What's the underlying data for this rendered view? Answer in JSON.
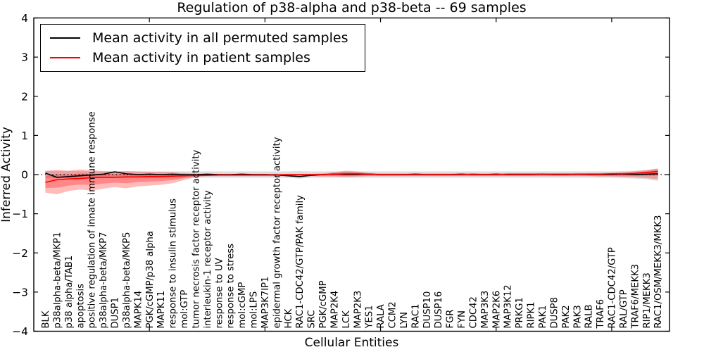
{
  "title": "Regulation of p38-alpha and p38-beta -- 69 samples",
  "axes": {
    "x_label": "Cellular Entities",
    "y_label": "Inferred Activity"
  },
  "legend": {
    "items": [
      {
        "label": "Mean activity in all permuted samples",
        "color": "#000000"
      },
      {
        "label": "Mean activity in patient samples",
        "color": "#ff0000"
      }
    ]
  },
  "colors": {
    "permuted_line": "#000000",
    "patient_line": "#ff0000",
    "patient_band": "#ff0000",
    "permuted_band": "#999999",
    "zero_line": "#000000",
    "spine": "#000000"
  },
  "chart_data": {
    "type": "line",
    "title": "Regulation of p38-alpha and p38-beta -- 69 samples",
    "xlabel": "Cellular Entities",
    "ylabel": "Inferred Activity",
    "ylim": [
      -4,
      4
    ],
    "xlim": [
      0,
      55
    ],
    "yticks": [
      -4,
      -3,
      -2,
      -1,
      0,
      1,
      2,
      3,
      4
    ],
    "xticks_major": [
      10,
      20,
      30,
      40,
      50
    ],
    "zero_line_style": "dotted",
    "legend_position": "upper left",
    "grid": false,
    "categories": [
      "BLK",
      "p38alpha-beta/MKP1",
      "p38 alpha/TAB1",
      "apoptosis",
      "positive regulation of innate immune response",
      "p38alpha-beta/MKP7",
      "DUSP1",
      "p38alpha-beta/MKP5",
      "MAPK14",
      "PGK/cGMP/p38 alpha",
      "MAPK11",
      "response to insulin stimulus",
      "mol:GTP",
      "tumor necrosis factor receptor activity",
      "interleukin-1 receptor activity",
      "response to UV",
      "response to stress",
      "mol:cGMP",
      "mol:LPS",
      "MAP3K7IP1",
      "epidermal growth factor receptor activity",
      "HCK",
      "RAC1-CDC42/GTP/PAK family",
      "SRC",
      "PGK/cGMP",
      "MAP2K4",
      "LCK",
      "MAP2K3",
      "YES1",
      "RALA",
      "CCM2",
      "LYN",
      "RAC1",
      "DUSP10",
      "DUSP16",
      "FGR",
      "FYN",
      "CDC42",
      "MAP3K3",
      "MAP2K6",
      "MAP3K12",
      "PRKG1",
      "RIPK1",
      "PAK1",
      "DUSP8",
      "PAK2",
      "PAK3",
      "RALB",
      "TRAF6",
      "RAC1-CDC42/GTP",
      "RAL/GTP",
      "TRAF6/MEKK3",
      "RIP1/MEKK3",
      "RAC1/OSM/MEKK3/MKK3"
    ],
    "series": [
      {
        "name": "Mean activity in all permuted samples",
        "color": "#000000",
        "values": [
          0.04,
          -0.07,
          -0.05,
          -0.03,
          -0.01,
          0.01,
          0.07,
          0.02,
          0.0,
          0.01,
          0.0,
          0.01,
          0.0,
          0.0,
          0.01,
          0.0,
          0.0,
          0.01,
          0.0,
          0.0,
          -0.01,
          -0.03,
          -0.05,
          -0.02,
          0.0,
          0.01,
          0.0,
          0.0,
          0.01,
          0.0,
          0.0,
          0.0,
          0.01,
          0.0,
          0.0,
          0.0,
          0.01,
          0.0,
          0.0,
          0.01,
          0.0,
          0.0,
          0.0,
          0.01,
          0.0,
          0.0,
          0.01,
          0.0,
          0.0,
          0.0,
          0.01,
          0.0,
          0.01,
          0.02
        ]
      },
      {
        "name": "Mean activity in patient samples",
        "color": "#ff0000",
        "values": [
          -0.2,
          -0.13,
          -0.11,
          -0.1,
          -0.08,
          -0.07,
          -0.07,
          -0.06,
          -0.06,
          -0.05,
          -0.05,
          -0.04,
          -0.03,
          -0.02,
          -0.02,
          -0.01,
          -0.01,
          -0.01,
          -0.01,
          -0.01,
          -0.01,
          0.0,
          0.0,
          0.0,
          0.0,
          0.01,
          0.02,
          0.02,
          0.01,
          0.0,
          0.0,
          0.0,
          0.0,
          0.0,
          0.0,
          0.0,
          0.0,
          0.01,
          0.0,
          0.0,
          0.01,
          0.01,
          0.01,
          0.01,
          0.01,
          0.01,
          0.01,
          0.01,
          0.01,
          0.02,
          0.02,
          0.03,
          0.05,
          0.08
        ]
      }
    ],
    "bands": [
      {
        "name": "permuted-sample-range",
        "color": "#999999",
        "opacity": 0.32,
        "hi": [
          0.09,
          0.09,
          0.09,
          0.09,
          0.08,
          0.08,
          0.08,
          0.08,
          0.08,
          0.08,
          0.08,
          0.08,
          0.08,
          0.08,
          0.08,
          0.08,
          0.08,
          0.08,
          0.08,
          0.08,
          0.08,
          0.08,
          0.09,
          0.08,
          0.08,
          0.08,
          0.08,
          0.08,
          0.08,
          0.08,
          0.08,
          0.08,
          0.08,
          0.08,
          0.08,
          0.08,
          0.08,
          0.08,
          0.08,
          0.08,
          0.08,
          0.08,
          0.08,
          0.08,
          0.08,
          0.08,
          0.08,
          0.08,
          0.08,
          0.08,
          0.09,
          0.1,
          0.12,
          0.16
        ],
        "lo": [
          -0.09,
          -0.09,
          -0.09,
          -0.09,
          -0.08,
          -0.08,
          -0.08,
          -0.08,
          -0.08,
          -0.08,
          -0.08,
          -0.08,
          -0.08,
          -0.08,
          -0.08,
          -0.08,
          -0.08,
          -0.08,
          -0.08,
          -0.08,
          -0.08,
          -0.08,
          -0.1,
          -0.08,
          -0.08,
          -0.08,
          -0.08,
          -0.08,
          -0.08,
          -0.08,
          -0.08,
          -0.08,
          -0.08,
          -0.08,
          -0.08,
          -0.08,
          -0.08,
          -0.08,
          -0.08,
          -0.08,
          -0.08,
          -0.08,
          -0.08,
          -0.08,
          -0.08,
          -0.08,
          -0.08,
          -0.08,
          -0.08,
          -0.08,
          -0.09,
          -0.1,
          -0.12,
          -0.16
        ]
      },
      {
        "name": "patient-sample-range",
        "color": "#ff0000",
        "opacity": 0.27,
        "hi": [
          0.1,
          0.12,
          0.1,
          0.13,
          0.11,
          0.09,
          0.08,
          0.09,
          0.08,
          0.07,
          0.07,
          0.06,
          0.04,
          0.02,
          0.02,
          0.02,
          0.02,
          0.02,
          0.02,
          0.02,
          0.02,
          0.02,
          0.02,
          0.02,
          0.03,
          0.06,
          0.1,
          0.08,
          0.04,
          0.03,
          0.03,
          0.03,
          0.03,
          0.03,
          0.03,
          0.03,
          0.03,
          0.03,
          0.03,
          0.03,
          0.03,
          0.03,
          0.03,
          0.03,
          0.03,
          0.03,
          0.03,
          0.04,
          0.04,
          0.05,
          0.06,
          0.08,
          0.11,
          0.15
        ],
        "lo": [
          -0.46,
          -0.5,
          -0.42,
          -0.38,
          -0.41,
          -0.36,
          -0.32,
          -0.35,
          -0.3,
          -0.28,
          -0.26,
          -0.22,
          -0.14,
          -0.06,
          -0.04,
          -0.04,
          -0.04,
          -0.04,
          -0.04,
          -0.04,
          -0.04,
          -0.04,
          -0.04,
          -0.04,
          -0.05,
          -0.05,
          -0.06,
          -0.05,
          -0.04,
          -0.04,
          -0.04,
          -0.04,
          -0.04,
          -0.04,
          -0.04,
          -0.04,
          -0.04,
          -0.04,
          -0.04,
          -0.04,
          -0.04,
          -0.04,
          -0.04,
          -0.04,
          -0.04,
          -0.04,
          -0.04,
          -0.04,
          -0.05,
          -0.05,
          -0.06,
          -0.07,
          -0.09,
          -0.12
        ],
        "inner_scale": 0.55
      }
    ]
  }
}
